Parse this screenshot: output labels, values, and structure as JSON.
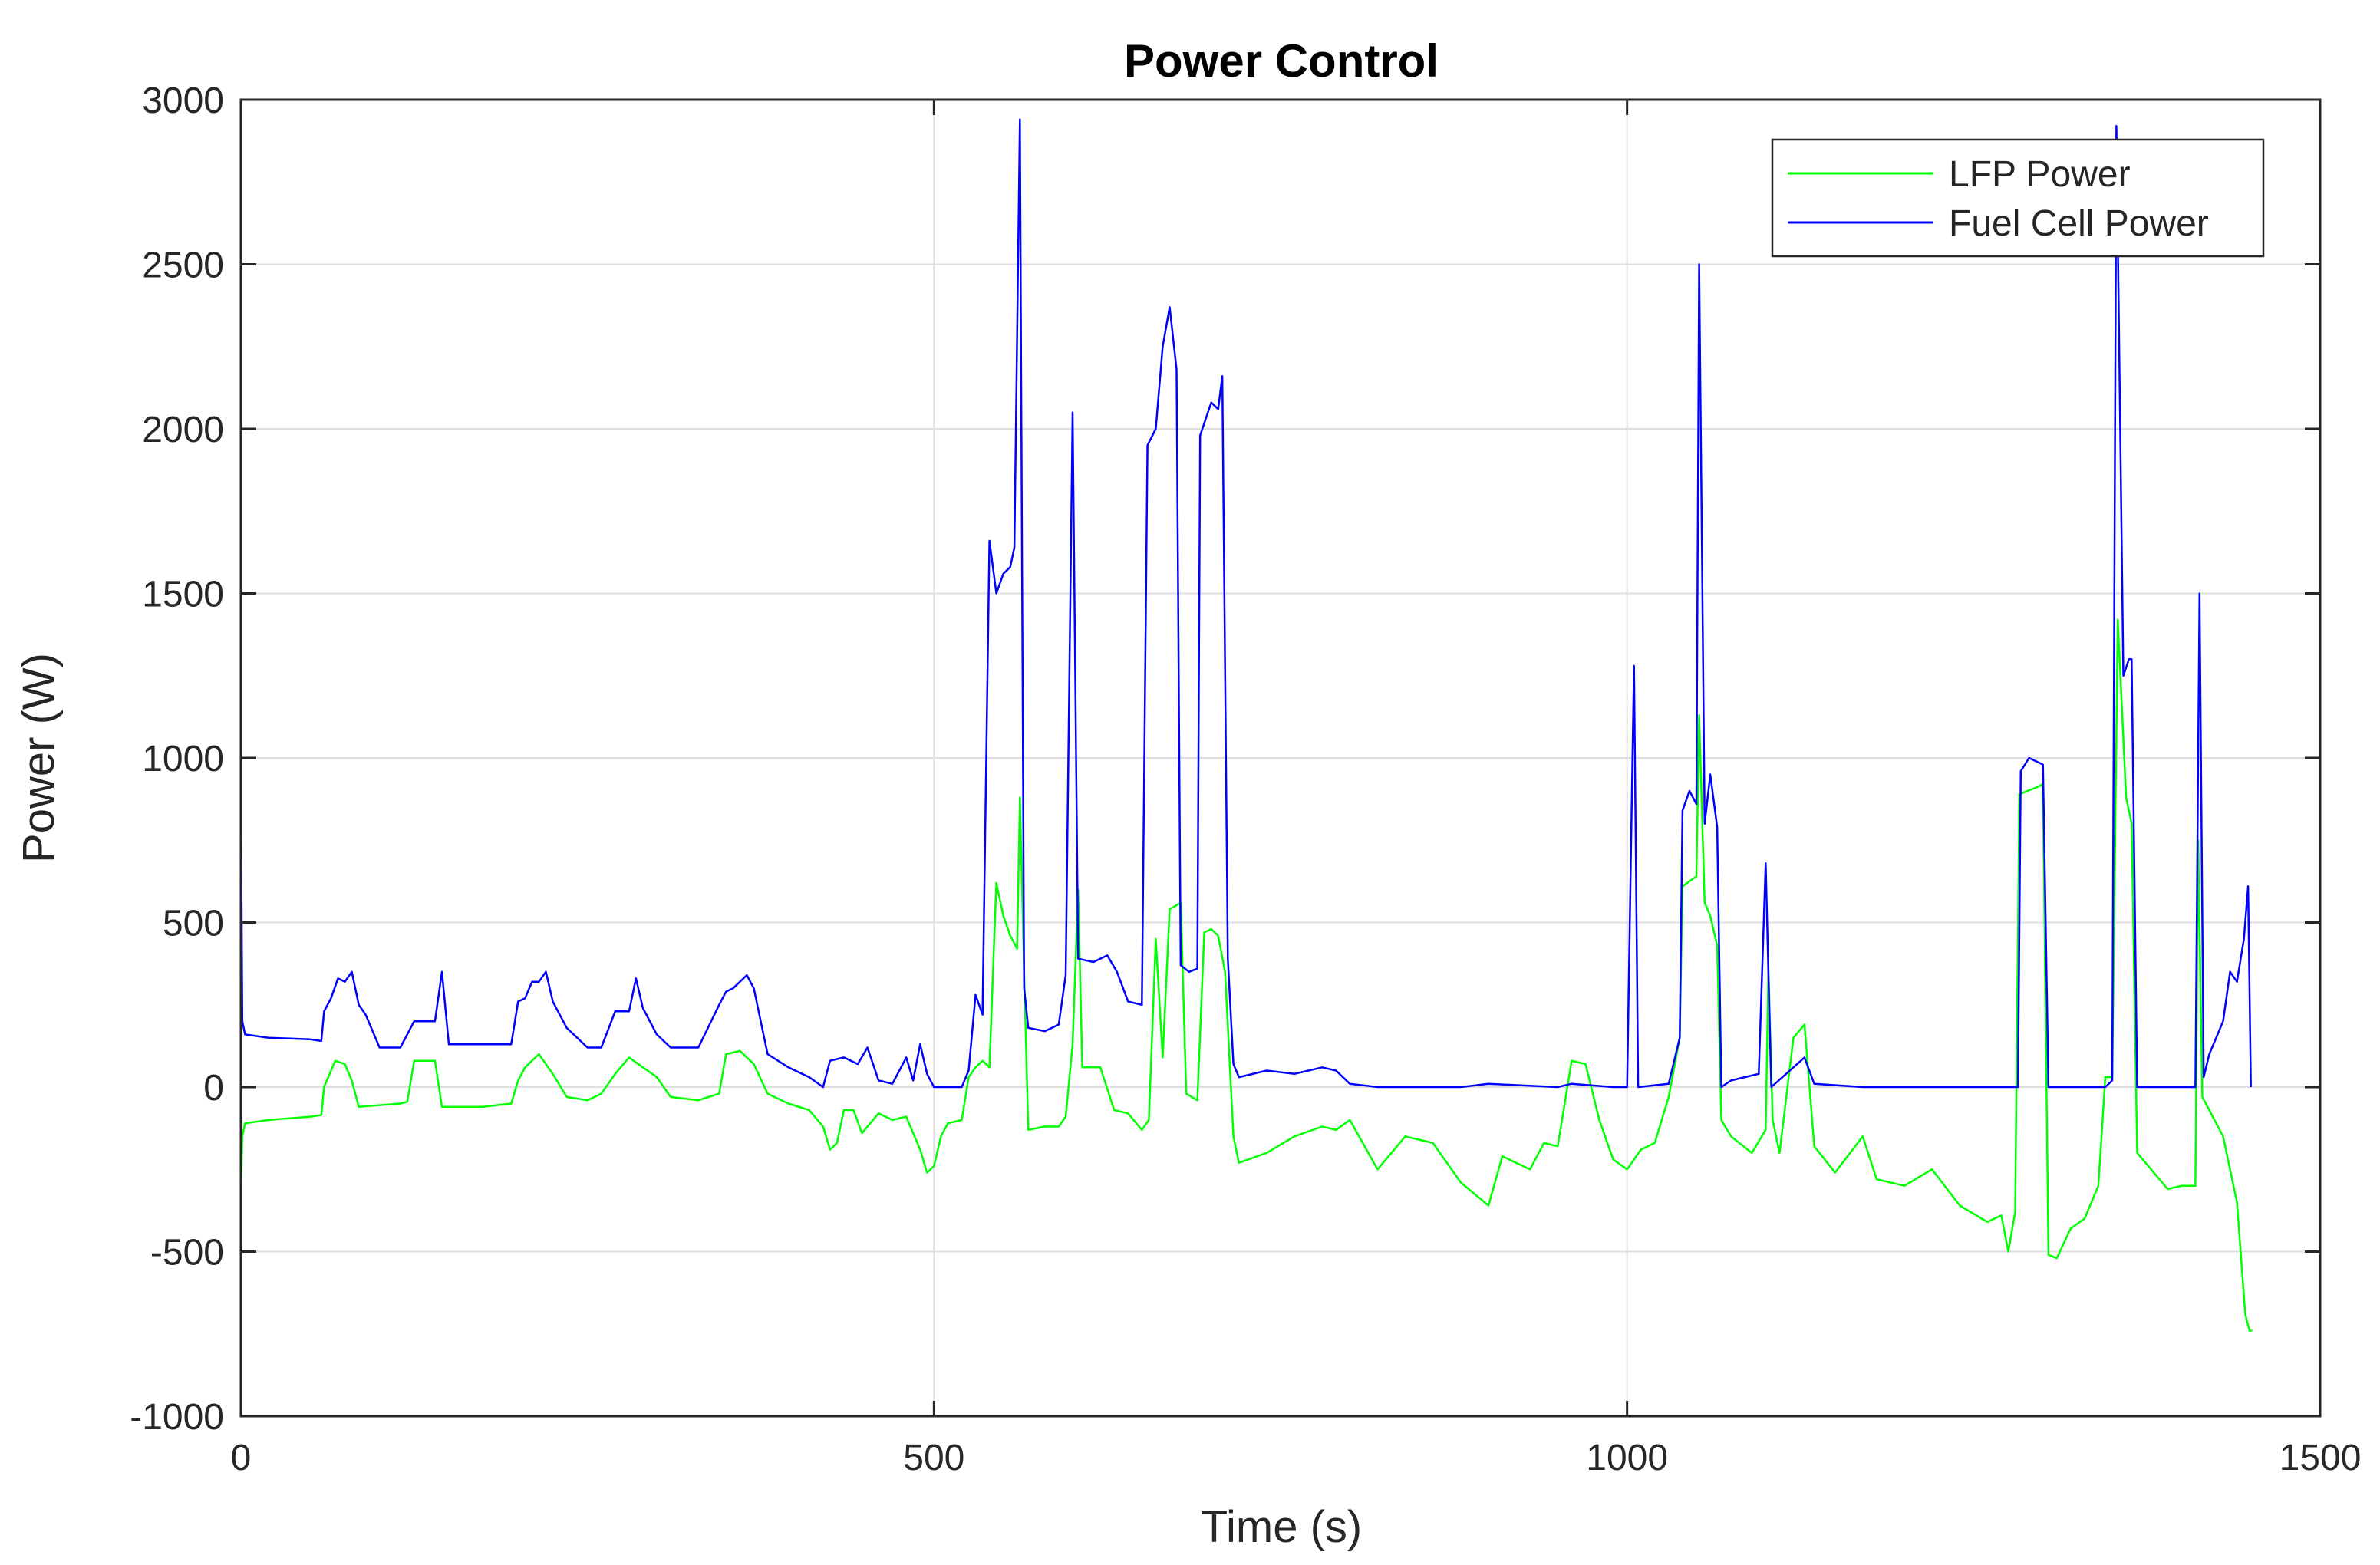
{
  "chart_data": {
    "type": "line",
    "title": "Power Control",
    "xlabel": "Time (s)",
    "ylabel": "Power (W)",
    "xlim": [
      0,
      1500
    ],
    "ylim": [
      -1000,
      3000
    ],
    "xticks": [
      0,
      500,
      1000,
      1500
    ],
    "xtick_labels": [
      "0",
      "500",
      "1000",
      "1500"
    ],
    "yticks": [
      -1000,
      -500,
      0,
      500,
      1000,
      1500,
      2000,
      2500,
      3000
    ],
    "ytick_labels": [
      "-1000",
      "-500",
      "0",
      "500",
      "1000",
      "1500",
      "2000",
      "2500",
      "3000"
    ],
    "grid": true,
    "legend_position": "top-right",
    "series": [
      {
        "name": "LFP Power",
        "color": "#00ff00",
        "points": [
          [
            0,
            -320
          ],
          [
            1,
            -150
          ],
          [
            3,
            -110
          ],
          [
            20,
            -100
          ],
          [
            50,
            -90
          ],
          [
            58,
            -85
          ],
          [
            60,
            0
          ],
          [
            68,
            80
          ],
          [
            75,
            70
          ],
          [
            80,
            20
          ],
          [
            85,
            -60
          ],
          [
            100,
            -55
          ],
          [
            115,
            -50
          ],
          [
            120,
            -45
          ],
          [
            125,
            80
          ],
          [
            140,
            80
          ],
          [
            145,
            -60
          ],
          [
            175,
            -60
          ],
          [
            195,
            -50
          ],
          [
            200,
            20
          ],
          [
            205,
            60
          ],
          [
            215,
            100
          ],
          [
            225,
            40
          ],
          [
            235,
            -30
          ],
          [
            250,
            -40
          ],
          [
            260,
            -20
          ],
          [
            270,
            40
          ],
          [
            280,
            90
          ],
          [
            290,
            60
          ],
          [
            300,
            30
          ],
          [
            310,
            -30
          ],
          [
            330,
            -40
          ],
          [
            345,
            -20
          ],
          [
            350,
            100
          ],
          [
            360,
            110
          ],
          [
            370,
            70
          ],
          [
            380,
            -20
          ],
          [
            395,
            -50
          ],
          [
            410,
            -70
          ],
          [
            420,
            -120
          ],
          [
            425,
            -190
          ],
          [
            430,
            -170
          ],
          [
            435,
            -70
          ],
          [
            442,
            -70
          ],
          [
            448,
            -140
          ],
          [
            452,
            -120
          ],
          [
            460,
            -80
          ],
          [
            470,
            -100
          ],
          [
            480,
            -90
          ],
          [
            485,
            -140
          ],
          [
            490,
            -190
          ],
          [
            495,
            -260
          ],
          [
            500,
            -240
          ],
          [
            505,
            -150
          ],
          [
            510,
            -110
          ],
          [
            520,
            -100
          ],
          [
            525,
            30
          ],
          [
            530,
            60
          ],
          [
            535,
            80
          ],
          [
            540,
            60
          ],
          [
            545,
            620
          ],
          [
            550,
            520
          ],
          [
            555,
            460
          ],
          [
            560,
            420
          ],
          [
            562,
            880
          ],
          [
            565,
            350
          ],
          [
            568,
            -130
          ],
          [
            580,
            -120
          ],
          [
            590,
            -120
          ],
          [
            595,
            -90
          ],
          [
            600,
            130
          ],
          [
            604,
            600
          ],
          [
            607,
            60
          ],
          [
            620,
            60
          ],
          [
            630,
            -70
          ],
          [
            640,
            -80
          ],
          [
            650,
            -130
          ],
          [
            655,
            -100
          ],
          [
            660,
            450
          ],
          [
            665,
            90
          ],
          [
            670,
            540
          ],
          [
            678,
            560
          ],
          [
            682,
            -20
          ],
          [
            690,
            -40
          ],
          [
            695,
            470
          ],
          [
            700,
            480
          ],
          [
            705,
            460
          ],
          [
            710,
            350
          ],
          [
            716,
            -150
          ],
          [
            720,
            -230
          ],
          [
            740,
            -200
          ],
          [
            760,
            -150
          ],
          [
            780,
            -120
          ],
          [
            790,
            -130
          ],
          [
            800,
            -100
          ],
          [
            820,
            -250
          ],
          [
            840,
            -150
          ],
          [
            860,
            -170
          ],
          [
            880,
            -290
          ],
          [
            900,
            -360
          ],
          [
            910,
            -210
          ],
          [
            920,
            -230
          ],
          [
            930,
            -250
          ],
          [
            940,
            -170
          ],
          [
            950,
            -180
          ],
          [
            960,
            80
          ],
          [
            970,
            70
          ],
          [
            980,
            -100
          ],
          [
            990,
            -220
          ],
          [
            1000,
            -250
          ],
          [
            1010,
            -190
          ],
          [
            1020,
            -170
          ],
          [
            1030,
            -30
          ],
          [
            1038,
            150
          ],
          [
            1040,
            610
          ],
          [
            1050,
            640
          ],
          [
            1052,
            1130
          ],
          [
            1056,
            560
          ],
          [
            1060,
            520
          ],
          [
            1065,
            430
          ],
          [
            1068,
            -100
          ],
          [
            1075,
            -150
          ],
          [
            1090,
            -200
          ],
          [
            1100,
            -130
          ],
          [
            1102,
            360
          ],
          [
            1105,
            -100
          ],
          [
            1110,
            -200
          ],
          [
            1120,
            150
          ],
          [
            1128,
            190
          ],
          [
            1135,
            -180
          ],
          [
            1150,
            -260
          ],
          [
            1170,
            -150
          ],
          [
            1180,
            -280
          ],
          [
            1200,
            -300
          ],
          [
            1220,
            -250
          ],
          [
            1240,
            -360
          ],
          [
            1260,
            -410
          ],
          [
            1270,
            -390
          ],
          [
            1275,
            -500
          ],
          [
            1280,
            -380
          ],
          [
            1283,
            890
          ],
          [
            1295,
            910
          ],
          [
            1300,
            920
          ],
          [
            1304,
            -510
          ],
          [
            1310,
            -520
          ],
          [
            1320,
            -430
          ],
          [
            1330,
            -400
          ],
          [
            1340,
            -300
          ],
          [
            1345,
            30
          ],
          [
            1350,
            30
          ],
          [
            1354,
            1420
          ],
          [
            1360,
            880
          ],
          [
            1364,
            800
          ],
          [
            1368,
            -200
          ],
          [
            1380,
            -260
          ],
          [
            1390,
            -310
          ],
          [
            1400,
            -300
          ],
          [
            1410,
            -300
          ],
          [
            1412,
            750
          ],
          [
            1415,
            -30
          ],
          [
            1420,
            -70
          ],
          [
            1430,
            -150
          ],
          [
            1440,
            -350
          ],
          [
            1446,
            -690
          ],
          [
            1449,
            -740
          ],
          [
            1451,
            -740
          ]
        ]
      },
      {
        "name": "Fuel Cell Power",
        "color": "#0000ff",
        "points": [
          [
            0,
            870
          ],
          [
            1,
            200
          ],
          [
            3,
            160
          ],
          [
            20,
            150
          ],
          [
            50,
            145
          ],
          [
            58,
            140
          ],
          [
            60,
            230
          ],
          [
            65,
            270
          ],
          [
            70,
            330
          ],
          [
            75,
            320
          ],
          [
            80,
            350
          ],
          [
            85,
            250
          ],
          [
            90,
            220
          ],
          [
            100,
            120
          ],
          [
            115,
            120
          ],
          [
            125,
            200
          ],
          [
            140,
            200
          ],
          [
            145,
            350
          ],
          [
            150,
            130
          ],
          [
            175,
            130
          ],
          [
            195,
            130
          ],
          [
            200,
            260
          ],
          [
            205,
            270
          ],
          [
            210,
            320
          ],
          [
            215,
            320
          ],
          [
            220,
            350
          ],
          [
            225,
            260
          ],
          [
            235,
            180
          ],
          [
            250,
            120
          ],
          [
            260,
            120
          ],
          [
            270,
            230
          ],
          [
            280,
            230
          ],
          [
            285,
            330
          ],
          [
            290,
            240
          ],
          [
            300,
            160
          ],
          [
            310,
            120
          ],
          [
            330,
            120
          ],
          [
            345,
            250
          ],
          [
            350,
            290
          ],
          [
            355,
            300
          ],
          [
            365,
            340
          ],
          [
            370,
            300
          ],
          [
            375,
            200
          ],
          [
            380,
            100
          ],
          [
            395,
            60
          ],
          [
            410,
            30
          ],
          [
            420,
            0
          ],
          [
            425,
            80
          ],
          [
            435,
            90
          ],
          [
            445,
            70
          ],
          [
            452,
            120
          ],
          [
            460,
            20
          ],
          [
            470,
            10
          ],
          [
            480,
            90
          ],
          [
            485,
            20
          ],
          [
            490,
            130
          ],
          [
            495,
            40
          ],
          [
            500,
            0
          ],
          [
            510,
            0
          ],
          [
            520,
            0
          ],
          [
            525,
            50
          ],
          [
            530,
            280
          ],
          [
            535,
            220
          ],
          [
            540,
            1660
          ],
          [
            545,
            1500
          ],
          [
            550,
            1560
          ],
          [
            555,
            1580
          ],
          [
            558,
            1640
          ],
          [
            562,
            2940
          ],
          [
            565,
            300
          ],
          [
            568,
            180
          ],
          [
            580,
            170
          ],
          [
            590,
            190
          ],
          [
            595,
            340
          ],
          [
            600,
            2050
          ],
          [
            604,
            390
          ],
          [
            615,
            380
          ],
          [
            625,
            400
          ],
          [
            632,
            350
          ],
          [
            640,
            260
          ],
          [
            650,
            250
          ],
          [
            654,
            1950
          ],
          [
            660,
            2000
          ],
          [
            665,
            2250
          ],
          [
            670,
            2370
          ],
          [
            675,
            2180
          ],
          [
            678,
            370
          ],
          [
            684,
            350
          ],
          [
            690,
            360
          ],
          [
            692,
            1980
          ],
          [
            700,
            2080
          ],
          [
            705,
            2060
          ],
          [
            708,
            2160
          ],
          [
            712,
            390
          ],
          [
            716,
            70
          ],
          [
            720,
            30
          ],
          [
            740,
            50
          ],
          [
            760,
            40
          ],
          [
            780,
            60
          ],
          [
            790,
            50
          ],
          [
            800,
            10
          ],
          [
            820,
            0
          ],
          [
            880,
            0
          ],
          [
            900,
            10
          ],
          [
            950,
            0
          ],
          [
            960,
            10
          ],
          [
            990,
            0
          ],
          [
            1000,
            0
          ],
          [
            1005,
            1280
          ],
          [
            1008,
            0
          ],
          [
            1030,
            10
          ],
          [
            1038,
            150
          ],
          [
            1040,
            840
          ],
          [
            1045,
            900
          ],
          [
            1050,
            860
          ],
          [
            1052,
            2500
          ],
          [
            1056,
            800
          ],
          [
            1060,
            950
          ],
          [
            1065,
            790
          ],
          [
            1068,
            0
          ],
          [
            1075,
            20
          ],
          [
            1095,
            40
          ],
          [
            1100,
            680
          ],
          [
            1104,
            0
          ],
          [
            1120,
            60
          ],
          [
            1128,
            90
          ],
          [
            1135,
            10
          ],
          [
            1170,
            0
          ],
          [
            1250,
            0
          ],
          [
            1270,
            0
          ],
          [
            1282,
            0
          ],
          [
            1284,
            960
          ],
          [
            1290,
            1000
          ],
          [
            1300,
            980
          ],
          [
            1304,
            0
          ],
          [
            1345,
            0
          ],
          [
            1350,
            20
          ],
          [
            1353,
            2920
          ],
          [
            1358,
            1250
          ],
          [
            1362,
            1300
          ],
          [
            1364,
            1300
          ],
          [
            1368,
            0
          ],
          [
            1410,
            0
          ],
          [
            1413,
            1500
          ],
          [
            1416,
            30
          ],
          [
            1420,
            100
          ],
          [
            1430,
            200
          ],
          [
            1435,
            350
          ],
          [
            1440,
            320
          ],
          [
            1445,
            450
          ],
          [
            1448,
            610
          ],
          [
            1450,
            0
          ]
        ]
      }
    ]
  }
}
